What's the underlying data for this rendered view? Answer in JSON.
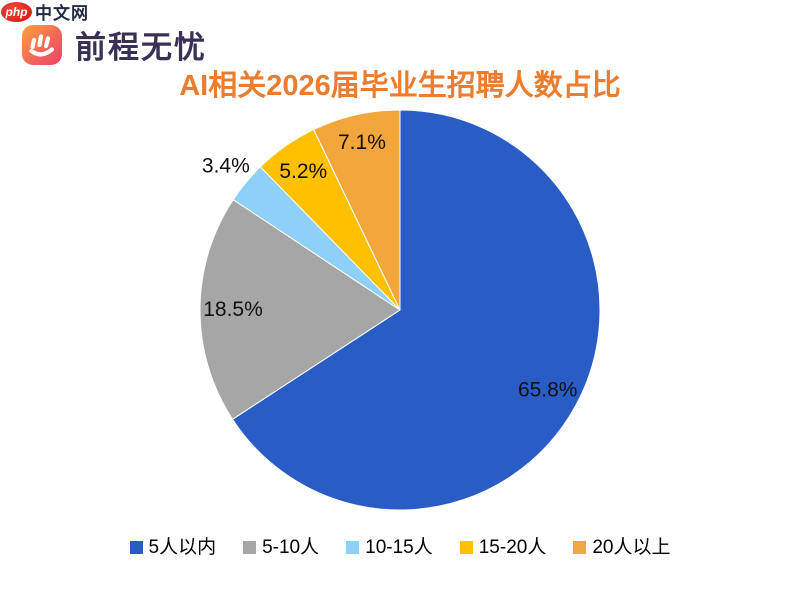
{
  "header": {
    "php_badge_text": "php",
    "php_site_text": "中文网",
    "brand_text": "前程无忧"
  },
  "chart_data": {
    "type": "pie",
    "title": "AI相关2026届毕业生招聘人数占比",
    "categories": [
      "5人以内",
      "5-10人",
      "10-15人",
      "15-20人",
      "20人以上"
    ],
    "values": [
      65.8,
      18.5,
      3.4,
      5.2,
      7.1
    ],
    "data_labels": [
      "65.8%",
      "18.5%",
      "3.4%",
      "5.2%",
      "7.1%"
    ],
    "colors": [
      "#2a5cc6",
      "#a6a6a6",
      "#8ed0f8",
      "#ffc000",
      "#f2a63c"
    ],
    "start_angle_deg": 0,
    "direction": "clockwise",
    "legend_position": "bottom",
    "title_color": "#ee7c2f",
    "label_color": "#111111"
  }
}
